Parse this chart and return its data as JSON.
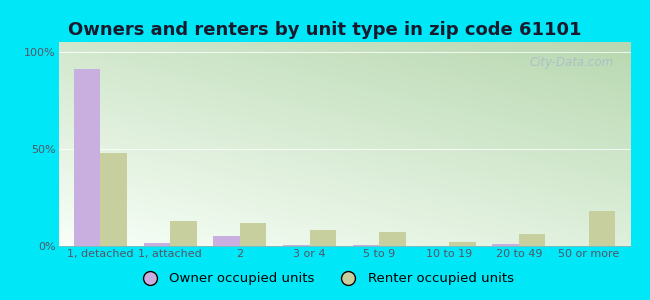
{
  "title": "Owners and renters by unit type in zip code 61101",
  "categories": [
    "1, detached",
    "1, attached",
    "2",
    "3 or 4",
    "5 to 9",
    "10 to 19",
    "20 to 49",
    "50 or more"
  ],
  "owner_values": [
    91,
    1.5,
    5,
    0.5,
    0.5,
    0.2,
    1.2,
    0.2
  ],
  "renter_values": [
    48,
    13,
    12,
    8,
    7,
    2,
    6,
    18
  ],
  "owner_color": "#c9aee0",
  "renter_color": "#c8cf9e",
  "background_outer": "#00e8f8",
  "yticks": [
    0,
    50,
    100
  ],
  "ylabels": [
    "0%",
    "50%",
    "100%"
  ],
  "ylim": [
    0,
    105
  ],
  "bar_width": 0.38,
  "title_fontsize": 13,
  "legend_fontsize": 9.5,
  "tick_fontsize": 8,
  "watermark_text": "City-Data.com",
  "watermark_color": "#aabbc8",
  "title_color": "#1a1a2e",
  "tick_color": "#555566"
}
